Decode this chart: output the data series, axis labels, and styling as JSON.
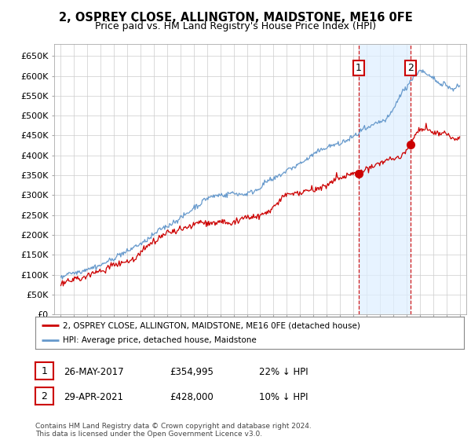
{
  "title": "2, OSPREY CLOSE, ALLINGTON, MAIDSTONE, ME16 0FE",
  "subtitle": "Price paid vs. HM Land Registry's House Price Index (HPI)",
  "ytick_labels": [
    "£0",
    "£50K",
    "£100K",
    "£150K",
    "£200K",
    "£250K",
    "£300K",
    "£350K",
    "£400K",
    "£450K",
    "£500K",
    "£550K",
    "£600K",
    "£650K"
  ],
  "yticks": [
    0,
    50000,
    100000,
    150000,
    200000,
    250000,
    300000,
    350000,
    400000,
    450000,
    500000,
    550000,
    600000,
    650000
  ],
  "hpi_color": "#6699cc",
  "price_color": "#cc0000",
  "shade_color": "#ddeeff",
  "marker1_date": 2017.4,
  "marker2_date": 2021.33,
  "marker1_price": 354995,
  "marker2_price": 428000,
  "annotation1": "1",
  "annotation2": "2",
  "legend_line1": "2, OSPREY CLOSE, ALLINGTON, MAIDSTONE, ME16 0FE (detached house)",
  "legend_line2": "HPI: Average price, detached house, Maidstone",
  "table_row1": [
    "1",
    "26-MAY-2017",
    "£354,995",
    "22% ↓ HPI"
  ],
  "table_row2": [
    "2",
    "29-APR-2021",
    "£428,000",
    "10% ↓ HPI"
  ],
  "footnote": "Contains HM Land Registry data © Crown copyright and database right 2024.\nThis data is licensed under the Open Government Licence v3.0.",
  "background_color": "#ffffff",
  "plot_bg_color": "#ffffff",
  "grid_color": "#cccccc"
}
